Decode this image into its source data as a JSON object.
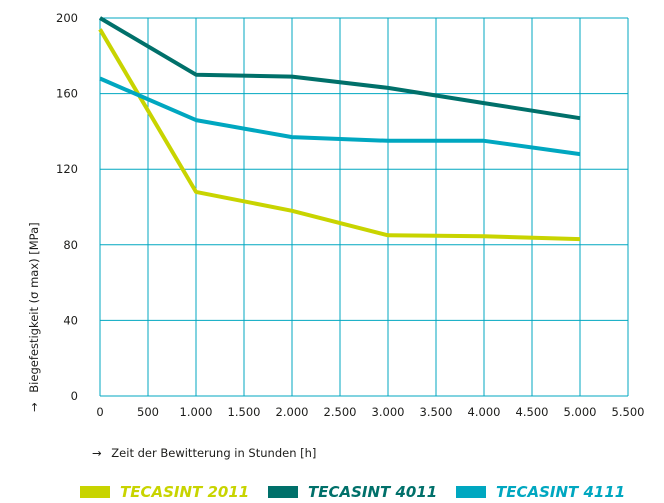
{
  "chart_data": {
    "type": "line",
    "xlabel": "Zeit der Bewitterung in Stunden [h]",
    "ylabel": "Biegefestigkeit (σ max) [MPa]",
    "axis_arrow": "→",
    "xlim": [
      0,
      5500
    ],
    "ylim": [
      0,
      200
    ],
    "x_ticks": [
      0,
      500,
      1000,
      1500,
      2000,
      2500,
      3000,
      3500,
      4000,
      4500,
      5000,
      5500
    ],
    "x_tick_labels": [
      "0",
      "500",
      "1.000",
      "1.500",
      "2.000",
      "2.500",
      "3.000",
      "3.500",
      "4.000",
      "4.500",
      "5.000",
      "5.500"
    ],
    "y_ticks": [
      0,
      40,
      80,
      120,
      160,
      200
    ],
    "y_tick_labels": [
      "0",
      "40",
      "80",
      "120",
      "160",
      "200"
    ],
    "grid": true,
    "legend_position": "bottom",
    "series": [
      {
        "name": "TECASINT 2011",
        "color": "#c8d400",
        "x": [
          0,
          1000,
          2000,
          3000,
          4000,
          5000
        ],
        "y": [
          194,
          108,
          98,
          85,
          84.5,
          83
        ]
      },
      {
        "name": "TECASINT 4011",
        "color": "#00706a",
        "x": [
          0,
          1000,
          2000,
          3000,
          4000,
          5000
        ],
        "y": [
          200,
          170,
          169,
          163,
          155,
          147
        ]
      },
      {
        "name": "TECASINT 4111",
        "color": "#00a7c0",
        "x": [
          0,
          1000,
          2000,
          3000,
          4000,
          5000
        ],
        "y": [
          168,
          146,
          137,
          135,
          135,
          128
        ]
      }
    ]
  }
}
